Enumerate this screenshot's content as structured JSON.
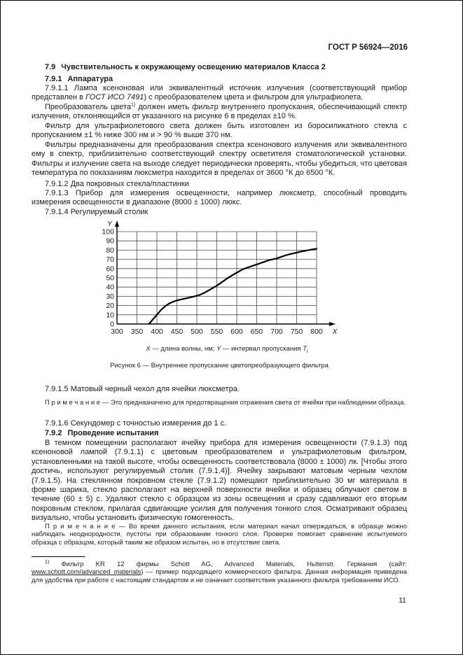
{
  "page": {
    "header": "ГОСТ Р 56924—2016",
    "number": "11"
  },
  "headings": {
    "s79": {
      "num": "7.9",
      "title": "Чувствительность к окружающему освещению материалов Класса 2"
    },
    "s791": {
      "num": "7.9.1",
      "title": "Аппаратура"
    },
    "s792": {
      "num": "7.9.2",
      "title": "Проведение испытания"
    }
  },
  "paragraphs": {
    "p7911": {
      "t1": "7.9.1.1 Лампа ксеноновая или эквивалентный источник излучения (соответствующий прибор представлен в ",
      "ref": "ГОСТ ИСО 7491",
      "t2": ") с преобразователем цвета и фильтром для ультрафиолета."
    },
    "p_conv": {
      "t1": "Преобразователь цвета",
      "sup": "1)",
      "t2": " должен иметь фильтр внутреннего пропускания, обеспечивающий спектр излучения, отклоняющийся от указанного на рисунке 6 в пределах ±10 %."
    },
    "p_uv": "Фильтр для ультрафиолетового света должен быть изготовлен из боросиликатного стекла с пропусканием ±1 % ниже 300 нм и > 90 % выше 370 нм.",
    "p_filters": "Фильтры предназначены для преобразования спектра ксенонового излучения или эквивалентного ему в спектр, приблизительно соответствующий спектру осветителя стоматологической установки. Фильтры и излучение света на выходе следует периодически проверять, чтобы убедиться, что цветовая температура по показаниям люксметра находится в пределах от 3600 °К до 6500 °К.",
    "p7912": "7.9.1.2 Два покровных стекла/пластинки",
    "p7913": "7.9.1.3 Прибор для измерения освещенности, например люксметр, способный проводить измерения освещенности в диапазоне (8000 ± 1000) люкс.",
    "p7914": "7.9.1.4 Регулируемый столик",
    "p7915": "7.9.1.5 Матовый черный чехол для ячейки люксметра.",
    "p7916": "7.9.1.6 Секундомер с точностью измерения до 1 с.",
    "p_test": "В темном помещении располагают ячейку прибора для измерения освещенности (7.9.1.3) под ксеноновой лампой (7.9.1.1) с цветовым преобразователем и ультрафиолетовым фильтром, установленными на такой высоте, чтобы освещенность соответствовала (8000 ± 1000) лк. [Чтобы этого достичь, используют регулируемый столик (7.9.1.4)]. Ячейку закрывают матовым черным чехлом (7.9.1.5). На стеклянном покровном стекле (7.9.1.2) помещают приблизительно 30 мг материала в форме шарика, стекло располагают на верхней поверхности ячейки и образец облучают светом в течение (60 ± 5) с. Удаляют стекло с образцом из зоны освещения и сразу сдавливают его вторым покровным стеклом, прилагая сдвигающие усилия для получения тонкого слоя. Осматривают образец визуально, чтобы установить физическую гомогенность."
  },
  "notes": {
    "note1": "П р и м е ч а н и е — Это предназначено для предотвращения отражения света от ячейки при наблюдении образца.",
    "note2": "П р и м е ч а н и е — Во время данного испытания, если материал начал отверждаться, в образце можно наблюдать неоднородности, пустоты при образовании тонкого слоя. Проверке помогает сравнение испытуемого образца с образцом, который таким же образом испытан, но в отсутствие света."
  },
  "figure": {
    "caption": "Рисунок 6 — Внутреннее пропускание цветопреобразующего фильтра",
    "legend": {
      "x_letter": "X",
      "x_text": " — длина волны, нм; ",
      "y_letter": "Y",
      "y_text": " — интервал пропускания ",
      "t_letter": "T",
      "t_sub": "i"
    }
  },
  "footnote": {
    "sup": "1)",
    "t1": " Фильтр KR 12 фирмы Schott AG, Advanced Materials, Hьttenstr. Германия (сайт: ",
    "url": "www.schott.com/advanced_materials",
    "t2": ") — пример подходящего коммерческого фильтра. Данная информация приведена для удобства при работе с настоящим стандартом и не означает соответствия указанного фильтра требованиям ИСО."
  },
  "chart_data": {
    "type": "line",
    "title": "Рисунок 6 — Внутреннее пропускание цветопреобразующего фильтра",
    "xlabel": "длина волны, нм",
    "ylabel": "интервал пропускания Ti",
    "x_axis_letter": "X",
    "y_axis_letter": "Y",
    "xlim": [
      300,
      800
    ],
    "ylim": [
      0,
      100
    ],
    "x_ticks": [
      300,
      350,
      400,
      450,
      500,
      550,
      600,
      650,
      700,
      750,
      800
    ],
    "y_ticks": [
      0,
      10,
      20,
      30,
      40,
      50,
      60,
      70,
      80,
      90,
      100
    ],
    "grid": true,
    "legend_position": "below",
    "line_color": "#000000",
    "grid_color": "#4a4a4a",
    "series": [
      {
        "name": "внутреннее пропускание цветопреобразующего фильтра",
        "points": [
          [
            380,
            0
          ],
          [
            390,
            5
          ],
          [
            400,
            10
          ],
          [
            410,
            15
          ],
          [
            420,
            19
          ],
          [
            430,
            22
          ],
          [
            440,
            24
          ],
          [
            450,
            25.5
          ],
          [
            460,
            26.5
          ],
          [
            470,
            27.5
          ],
          [
            480,
            28.5
          ],
          [
            490,
            29.5
          ],
          [
            500,
            30.5
          ],
          [
            510,
            32
          ],
          [
            520,
            34
          ],
          [
            530,
            36.5
          ],
          [
            540,
            39
          ],
          [
            550,
            41.5
          ],
          [
            560,
            44.5
          ],
          [
            570,
            47.5
          ],
          [
            580,
            50.5
          ],
          [
            590,
            53
          ],
          [
            600,
            55.5
          ],
          [
            610,
            58
          ],
          [
            620,
            60
          ],
          [
            630,
            61.5
          ],
          [
            640,
            63
          ],
          [
            650,
            64.5
          ],
          [
            660,
            66
          ],
          [
            670,
            67.5
          ],
          [
            680,
            69
          ],
          [
            690,
            70
          ],
          [
            700,
            71
          ],
          [
            710,
            72.5
          ],
          [
            720,
            74
          ],
          [
            730,
            75.2
          ],
          [
            740,
            76.3
          ],
          [
            750,
            77.3
          ],
          [
            760,
            78.3
          ],
          [
            770,
            79.2
          ],
          [
            780,
            80
          ],
          [
            790,
            80.8
          ],
          [
            800,
            81.5
          ]
        ]
      }
    ]
  }
}
